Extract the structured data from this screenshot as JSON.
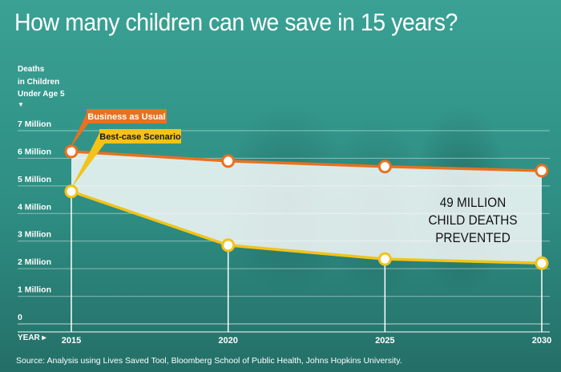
{
  "title": "How many children can we save in 15 years?",
  "colors": {
    "business": "#e8711f",
    "bestcase": "#f2c318",
    "gap": "#ffffff",
    "grid": "#ffffff"
  },
  "chart_data": {
    "type": "line",
    "title": "How many children can we save in 15 years?",
    "ylabel_lines": [
      "Deaths",
      "in Children",
      "Under Age 5"
    ],
    "ylabel_arrow": "▼",
    "xlabel": "YEAR ▸",
    "x": [
      2015,
      2020,
      2025,
      2030
    ],
    "x_tick_labels": [
      "2015",
      "2020",
      "2025",
      "2030"
    ],
    "y_tick_labels": [
      "0",
      "1 Million",
      "2 Million",
      "3 Million",
      "4 Million",
      "5 Million",
      "6 Million",
      "7 Million"
    ],
    "ylim": [
      0,
      7
    ],
    "y_unit": "Million",
    "grid": true,
    "series": [
      {
        "name": "Business as Usual",
        "values": [
          6.25,
          5.9,
          5.7,
          5.55
        ]
      },
      {
        "name": "Best-case Scenario",
        "values": [
          4.8,
          2.85,
          2.35,
          2.2
        ]
      }
    ],
    "annotation": [
      "49 MILLION",
      "CHILD DEATHS",
      "PREVENTED"
    ]
  },
  "source": "Source: Analysis using Lives Saved Tool, Bloomberg School of Public Health, Johns Hopkins University."
}
